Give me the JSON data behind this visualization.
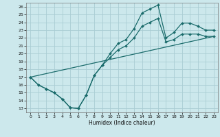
{
  "xlabel": "Humidex (Indice chaleur)",
  "bg_color": "#cce8ec",
  "grid_color": "#aacdd4",
  "line_color": "#1a6b6b",
  "xlim": [
    -0.5,
    23.5
  ],
  "ylim": [
    12.5,
    26.5
  ],
  "xticks": [
    0,
    1,
    2,
    3,
    4,
    5,
    6,
    7,
    8,
    9,
    10,
    11,
    12,
    13,
    14,
    15,
    16,
    17,
    18,
    19,
    20,
    21,
    22,
    23
  ],
  "yticks": [
    13,
    14,
    15,
    16,
    17,
    18,
    19,
    20,
    21,
    22,
    23,
    24,
    25,
    26
  ],
  "line1_x": [
    0,
    1,
    2,
    3,
    4,
    5,
    6,
    7,
    8,
    9,
    10,
    11,
    12,
    13,
    14,
    15,
    16,
    17,
    18,
    19,
    20,
    21,
    22,
    23
  ],
  "line1_y": [
    17.0,
    16.0,
    15.5,
    15.0,
    14.2,
    13.1,
    13.0,
    14.7,
    17.2,
    18.5,
    20.0,
    21.3,
    21.8,
    23.2,
    25.2,
    25.7,
    26.2,
    22.0,
    22.7,
    23.9,
    23.9,
    23.5,
    23.0,
    23.0
  ],
  "line2_x": [
    0,
    1,
    2,
    3,
    4,
    5,
    6,
    7,
    8,
    9,
    10,
    11,
    12,
    13,
    14,
    15,
    16,
    17,
    18,
    19,
    20,
    21,
    22,
    23
  ],
  "line2_y": [
    17.0,
    16.0,
    15.5,
    15.0,
    14.2,
    13.1,
    13.0,
    14.7,
    17.2,
    18.5,
    19.5,
    20.5,
    21.0,
    22.0,
    23.5,
    24.0,
    24.5,
    21.5,
    21.8,
    22.5,
    22.5,
    22.5,
    22.2,
    22.2
  ],
  "line3_x": [
    0,
    23
  ],
  "line3_y": [
    17.0,
    22.2
  ]
}
